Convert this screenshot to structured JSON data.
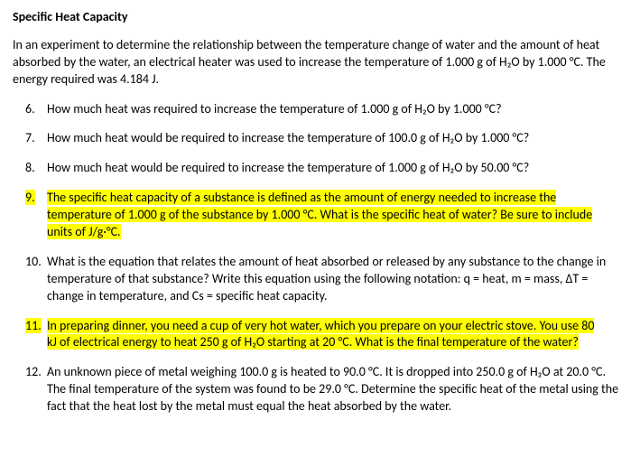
{
  "title": "Specific Heat Capacity",
  "intro": "In an experiment to determine the relationship between the temperature change of water and the amount of heat absorbed by the water, an electrical heater was used to increase the temperature of 1.000 g of H₂O by 1.000 °C.  The energy required was 4.184 J.",
  "questions": [
    {
      "num": "6.",
      "text": "How much heat was required to increase the temperature of 1.000 g of H₂O by 1.000 °C?",
      "highlighted": false
    },
    {
      "num": "7.",
      "text": "How much heat would be required to increase the temperature of 100.0 g of H₂O by 1.000 °C?",
      "highlighted": false
    },
    {
      "num": "8.",
      "text": "How much heat would be required to increase the temperature of 1.000 g of H₂O by 50.00 °C?",
      "highlighted": false
    },
    {
      "num": "9.",
      "text_a": "The specific heat capacity of a substance is defined as the amount of energy needed to increase the",
      "text_b": "temperature of 1.000 g of the substance by 1.000 °C.  What is the specific heat of water?  Be sure to include",
      "text_c": "units of J/g·°C.",
      "highlighted": true
    },
    {
      "num": "10.",
      "text": "What is the equation that relates the amount of heat absorbed or released by any substance to the change in temperature of that substance?  Write this equation using the following notation: q = heat, m = mass, ΔT = change in temperature, and Cs = specific heat capacity.",
      "highlighted": false
    },
    {
      "num": "11.",
      "text_a": "In preparing dinner, you need a cup of very hot water, which you prepare on your electric stove.  You use 80",
      "text_b": "kJ of electrical energy to heat 250 g of H₂O starting at 20 °C.   What is the final temperature of the water?",
      "highlighted": true
    },
    {
      "num": "12.",
      "text": "An unknown piece of metal weighing 100.0 g is heated to 90.0 °C.  It is dropped into 250.0 g of H₂O at 20.0 °C. The final temperature of the system was found to be 29.0 °C.  Determine the specific heat of the metal using the fact that the heat lost by the metal must equal the heat absorbed by the water.",
      "highlighted": false
    }
  ],
  "highlight_color": "#ffff00",
  "text_color": "#000000",
  "background_color": "#ffffff",
  "font_size": 14
}
